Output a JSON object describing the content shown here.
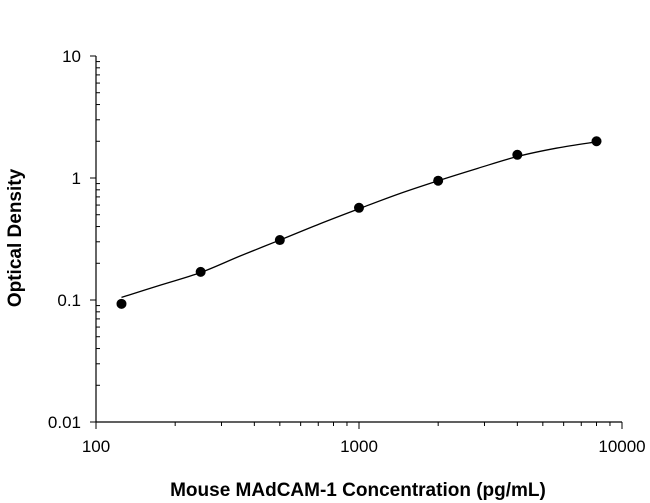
{
  "chart_data": {
    "type": "scatter",
    "title": "",
    "xlabel": "Mouse MAdCAM-1 Concentration (pg/mL)",
    "ylabel": "Optical Density",
    "xscale": "log",
    "yscale": "log",
    "xlim": [
      100,
      10000
    ],
    "ylim": [
      0.01,
      10
    ],
    "x_ticks": [
      100,
      1000,
      10000
    ],
    "x_tick_labels": [
      "100",
      "1000",
      "10000"
    ],
    "y_ticks": [
      0.01,
      0.1,
      1,
      10
    ],
    "y_tick_labels": [
      "0.01",
      "0.1",
      "1",
      "10"
    ],
    "grid": false,
    "legend": "none",
    "series": [
      {
        "x": [
          125,
          250,
          500,
          1000,
          2000,
          4000,
          8000
        ],
        "y": [
          0.093,
          0.17,
          0.31,
          0.57,
          0.95,
          1.55,
          2.0
        ]
      }
    ],
    "fit_curve": {
      "type": "smooth",
      "x": [
        125,
        177,
        250,
        354,
        500,
        707,
        1000,
        1414,
        2000,
        2828,
        4000,
        5657,
        8000
      ],
      "y": [
        0.105,
        0.133,
        0.168,
        0.23,
        0.31,
        0.42,
        0.56,
        0.74,
        0.95,
        1.2,
        1.5,
        1.76,
        1.98
      ]
    },
    "colors": {
      "markers": "#000000",
      "curve": "#000000",
      "axes": "#000000"
    }
  }
}
